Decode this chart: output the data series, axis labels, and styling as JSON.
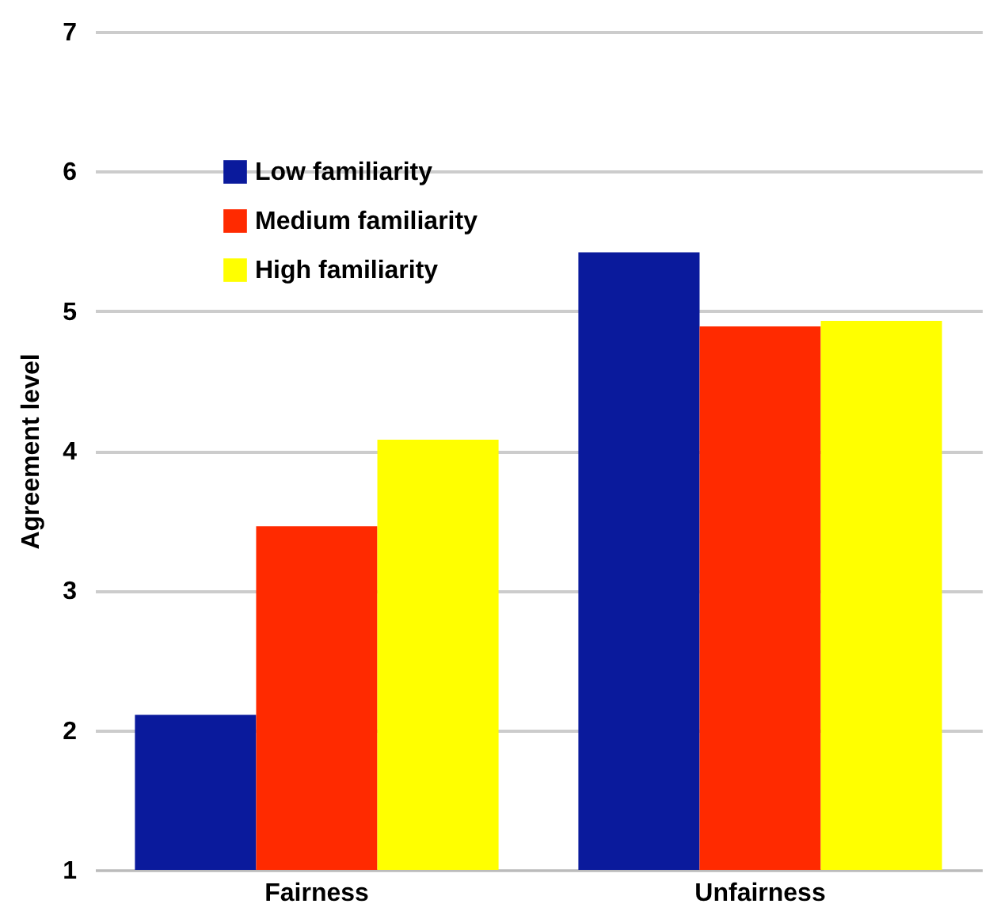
{
  "chart_data": {
    "type": "bar",
    "ylabel": "Agreement level",
    "categories": [
      "Fairness",
      "Unfairness"
    ],
    "series": [
      {
        "name": "Low familiarity",
        "color": "#0a1a9c",
        "values": [
          2.11,
          5.42
        ]
      },
      {
        "name": "Medium familiarity",
        "color": "#ff2a00",
        "values": [
          3.46,
          4.89
        ]
      },
      {
        "name": "High familiarity",
        "color": "#ffff00",
        "values": [
          4.08,
          4.93
        ]
      }
    ],
    "ylim": [
      1,
      7
    ],
    "yticks": [
      1,
      2,
      3,
      4,
      5,
      6,
      7
    ],
    "grid": "y",
    "legend": "top left"
  }
}
